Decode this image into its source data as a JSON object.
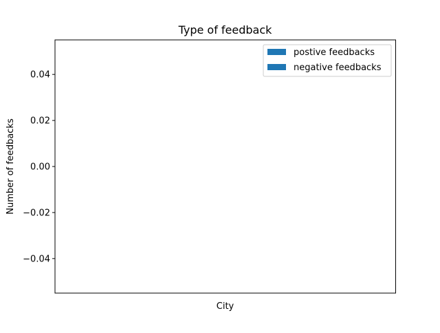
{
  "chart_data": {
    "type": "bar",
    "title": "Type of feedback",
    "xlabel": "City",
    "ylabel": "Number of feedbacks",
    "categories": [],
    "series": [
      {
        "name": "postive feedbacks",
        "values": [],
        "color": "#1f77b4"
      },
      {
        "name": "negative feedbacks",
        "values": [],
        "color": "#1f77b4"
      }
    ],
    "ylim": [
      -0.055,
      0.055
    ],
    "yticks": [
      -0.04,
      -0.02,
      0.0,
      0.02,
      0.04
    ],
    "ytick_labels": [
      "−0.04",
      "−0.02",
      "0.00",
      "0.02",
      "0.04"
    ],
    "grid": false,
    "legend": "upper right"
  }
}
